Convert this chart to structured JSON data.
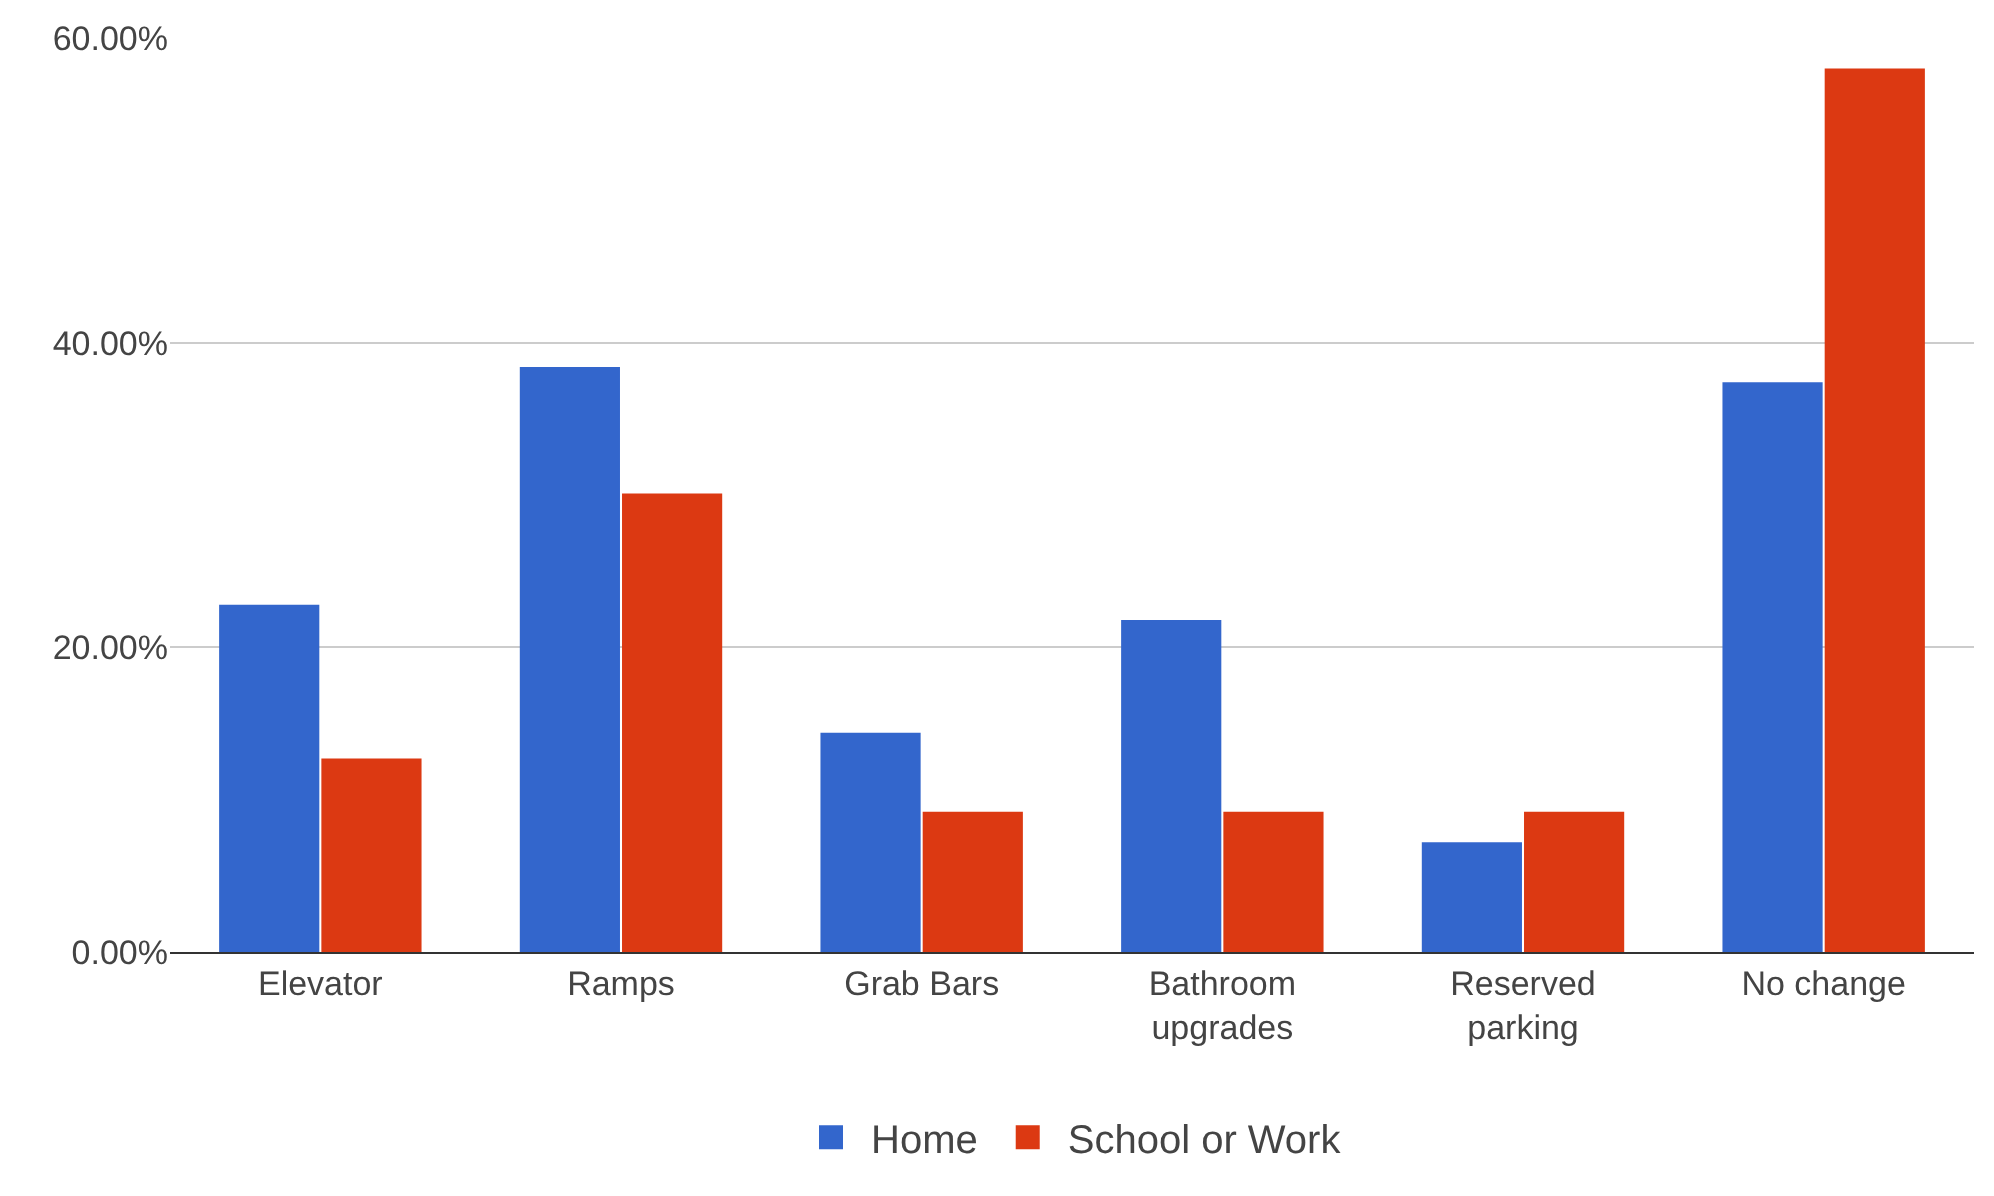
{
  "chart_data": {
    "type": "bar",
    "categories": [
      "Elevator",
      "Ramps",
      "Grab Bars",
      "Bathroom\nupgrades",
      "Reserved\nparking",
      "No change"
    ],
    "series": [
      {
        "name": "Home",
        "color": "#3366cc",
        "values": [
          22.8,
          38.4,
          14.4,
          21.8,
          7.2,
          37.4
        ]
      },
      {
        "name": "School or Work",
        "color": "#dc3912",
        "values": [
          12.7,
          30.1,
          9.2,
          9.2,
          9.2,
          58.0
        ]
      }
    ],
    "ylim": [
      0,
      60
    ],
    "yticks": [
      {
        "value": 0,
        "label": "0.00%"
      },
      {
        "value": 20,
        "label": "20.00%"
      },
      {
        "value": 40,
        "label": "40.00%"
      },
      {
        "value": 60,
        "label": "60.00%"
      }
    ],
    "grid": "y",
    "legend": "bottom"
  }
}
